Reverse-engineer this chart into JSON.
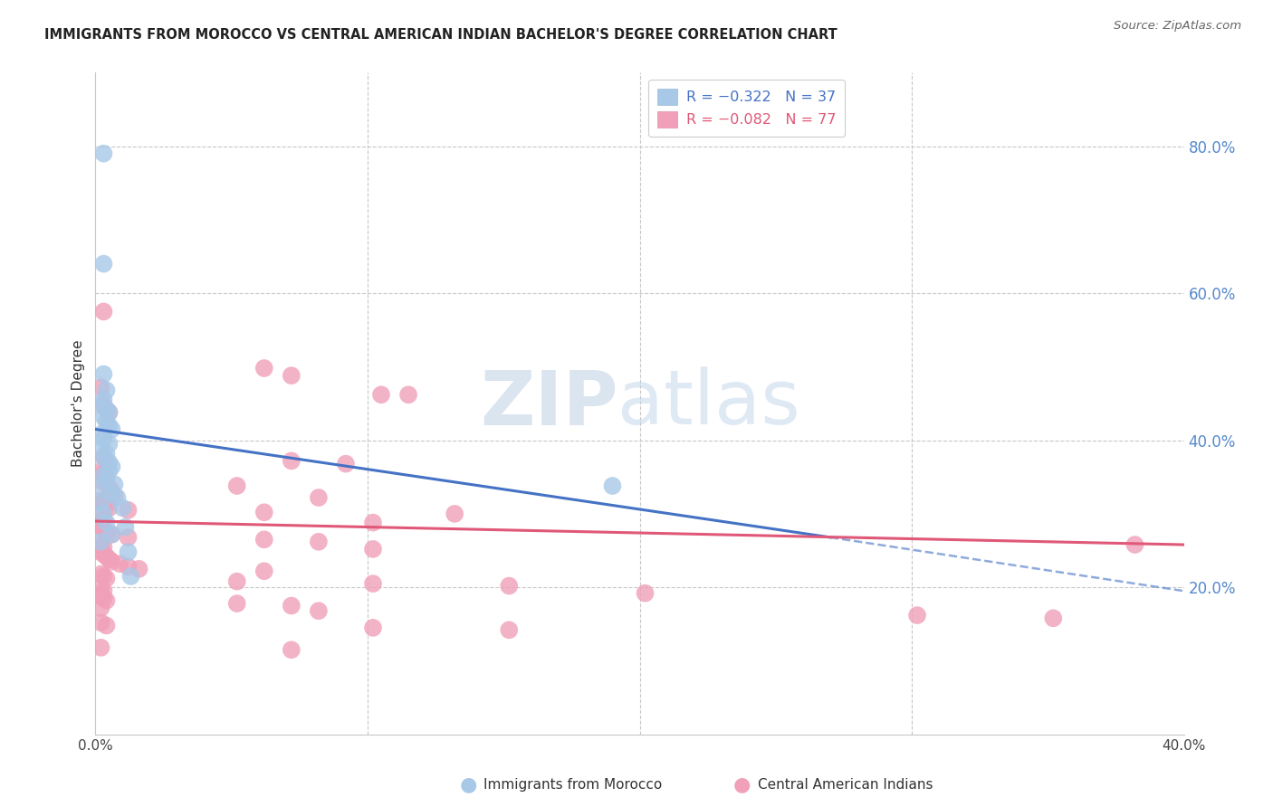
{
  "title": "IMMIGRANTS FROM MOROCCO VS CENTRAL AMERICAN INDIAN BACHELOR'S DEGREE CORRELATION CHART",
  "source": "Source: ZipAtlas.com",
  "ylabel": "Bachelor's Degree",
  "watermark_zip": "ZIP",
  "watermark_atlas": "atlas",
  "xlim": [
    0.0,
    0.4
  ],
  "ylim": [
    0.0,
    0.9
  ],
  "y_ticks_right": [
    0.2,
    0.4,
    0.6,
    0.8
  ],
  "y_tick_labels_right": [
    "20.0%",
    "40.0%",
    "60.0%",
    "80.0%"
  ],
  "legend_r_blue": "R = -0.322",
  "legend_n_blue": "N = 37",
  "legend_r_pink": "R = -0.082",
  "legend_n_pink": "N = 77",
  "blue_color": "#a8c8e8",
  "pink_color": "#f0a0b8",
  "blue_line_color": "#4472c4",
  "pink_line_color": "#e05878",
  "background_color": "#ffffff",
  "grid_color": "#c8c8c8",
  "title_color": "#222222",
  "right_axis_color": "#5588cc",
  "blue_scatter": [
    [
      0.003,
      0.79
    ],
    [
      0.003,
      0.64
    ],
    [
      0.003,
      0.49
    ],
    [
      0.004,
      0.468
    ],
    [
      0.003,
      0.455
    ],
    [
      0.002,
      0.448
    ],
    [
      0.004,
      0.442
    ],
    [
      0.005,
      0.438
    ],
    [
      0.003,
      0.432
    ],
    [
      0.004,
      0.425
    ],
    [
      0.005,
      0.42
    ],
    [
      0.006,
      0.415
    ],
    [
      0.002,
      0.408
    ],
    [
      0.003,
      0.402
    ],
    [
      0.005,
      0.395
    ],
    [
      0.002,
      0.388
    ],
    [
      0.004,
      0.382
    ],
    [
      0.003,
      0.376
    ],
    [
      0.005,
      0.37
    ],
    [
      0.006,
      0.364
    ],
    [
      0.005,
      0.358
    ],
    [
      0.003,
      0.352
    ],
    [
      0.004,
      0.346
    ],
    [
      0.007,
      0.34
    ],
    [
      0.002,
      0.335
    ],
    [
      0.006,
      0.328
    ],
    [
      0.008,
      0.322
    ],
    [
      0.002,
      0.315
    ],
    [
      0.01,
      0.308
    ],
    [
      0.003,
      0.3
    ],
    [
      0.004,
      0.288
    ],
    [
      0.011,
      0.282
    ],
    [
      0.006,
      0.272
    ],
    [
      0.002,
      0.262
    ],
    [
      0.012,
      0.248
    ],
    [
      0.19,
      0.338
    ],
    [
      0.013,
      0.215
    ]
  ],
  "pink_scatter": [
    [
      0.003,
      0.575
    ],
    [
      0.062,
      0.498
    ],
    [
      0.072,
      0.488
    ],
    [
      0.002,
      0.472
    ],
    [
      0.105,
      0.462
    ],
    [
      0.115,
      0.462
    ],
    [
      0.003,
      0.448
    ],
    [
      0.004,
      0.442
    ],
    [
      0.005,
      0.438
    ],
    [
      0.003,
      0.378
    ],
    [
      0.004,
      0.372
    ],
    [
      0.072,
      0.372
    ],
    [
      0.092,
      0.368
    ],
    [
      0.002,
      0.358
    ],
    [
      0.003,
      0.355
    ],
    [
      0.004,
      0.35
    ],
    [
      0.002,
      0.345
    ],
    [
      0.004,
      0.342
    ],
    [
      0.052,
      0.338
    ],
    [
      0.005,
      0.335
    ],
    [
      0.006,
      0.33
    ],
    [
      0.007,
      0.325
    ],
    [
      0.082,
      0.322
    ],
    [
      0.002,
      0.318
    ],
    [
      0.003,
      0.315
    ],
    [
      0.004,
      0.312
    ],
    [
      0.005,
      0.308
    ],
    [
      0.012,
      0.305
    ],
    [
      0.062,
      0.302
    ],
    [
      0.132,
      0.3
    ],
    [
      0.002,
      0.295
    ],
    [
      0.003,
      0.292
    ],
    [
      0.102,
      0.288
    ],
    [
      0.002,
      0.282
    ],
    [
      0.003,
      0.278
    ],
    [
      0.004,
      0.275
    ],
    [
      0.006,
      0.272
    ],
    [
      0.012,
      0.268
    ],
    [
      0.062,
      0.265
    ],
    [
      0.082,
      0.262
    ],
    [
      0.002,
      0.258
    ],
    [
      0.003,
      0.255
    ],
    [
      0.102,
      0.252
    ],
    [
      0.002,
      0.248
    ],
    [
      0.003,
      0.245
    ],
    [
      0.004,
      0.242
    ],
    [
      0.005,
      0.238
    ],
    [
      0.006,
      0.235
    ],
    [
      0.009,
      0.232
    ],
    [
      0.012,
      0.228
    ],
    [
      0.016,
      0.225
    ],
    [
      0.062,
      0.222
    ],
    [
      0.002,
      0.218
    ],
    [
      0.003,
      0.215
    ],
    [
      0.004,
      0.212
    ],
    [
      0.052,
      0.208
    ],
    [
      0.102,
      0.205
    ],
    [
      0.152,
      0.202
    ],
    [
      0.002,
      0.198
    ],
    [
      0.003,
      0.195
    ],
    [
      0.202,
      0.192
    ],
    [
      0.002,
      0.188
    ],
    [
      0.003,
      0.185
    ],
    [
      0.004,
      0.182
    ],
    [
      0.052,
      0.178
    ],
    [
      0.072,
      0.175
    ],
    [
      0.002,
      0.172
    ],
    [
      0.082,
      0.168
    ],
    [
      0.302,
      0.162
    ],
    [
      0.352,
      0.158
    ],
    [
      0.002,
      0.152
    ],
    [
      0.004,
      0.148
    ],
    [
      0.102,
      0.145
    ],
    [
      0.152,
      0.142
    ],
    [
      0.382,
      0.258
    ],
    [
      0.002,
      0.118
    ],
    [
      0.072,
      0.115
    ]
  ],
  "blue_trendline_solid": [
    [
      0.0,
      0.415
    ],
    [
      0.27,
      0.268
    ]
  ],
  "blue_trendline_dash": [
    [
      0.27,
      0.268
    ],
    [
      0.4,
      0.195
    ]
  ],
  "pink_trendline": [
    [
      0.0,
      0.29
    ],
    [
      0.4,
      0.258
    ]
  ]
}
